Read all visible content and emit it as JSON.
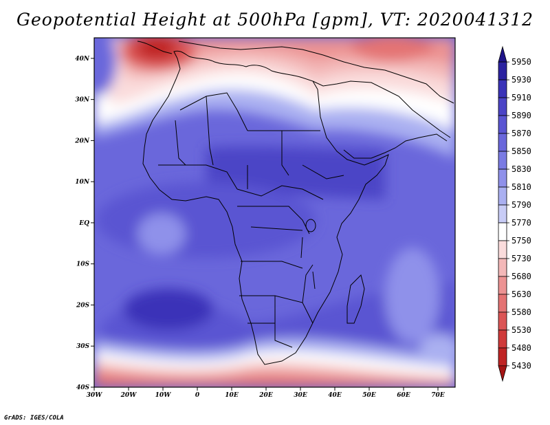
{
  "title": "Geopotential Height at 500hPa [gpm], VT: 2020041312",
  "credit": "GrADS: IGES/COLA",
  "map": {
    "variable": "Geopotential Height at 500hPa",
    "units": "gpm",
    "valid_time": "2020041312",
    "lon_range": [
      -30,
      75
    ],
    "lat_range": [
      -40,
      45
    ],
    "lon_ticks": [
      "30W",
      "20W",
      "10W",
      "0",
      "10E",
      "20E",
      "30E",
      "40E",
      "50E",
      "60E",
      "70E"
    ],
    "lat_ticks": [
      "40N",
      "30N",
      "20N",
      "10N",
      "EQ",
      "10S",
      "20S",
      "30S",
      "40S"
    ],
    "colorbar": {
      "labels": [
        "5950",
        "5930",
        "5910",
        "5890",
        "5870",
        "5850",
        "5830",
        "5810",
        "5790",
        "5770",
        "5750",
        "5730",
        "5680",
        "5630",
        "5580",
        "5530",
        "5480",
        "5430"
      ],
      "colors": [
        "#1f1489",
        "#2b22a0",
        "#3a33b8",
        "#4b44c6",
        "#5a55d2",
        "#6a67db",
        "#7a7be3",
        "#8f91ea",
        "#aab0f1",
        "#c8ccf6",
        "#ffffff",
        "#fadcdc",
        "#f3b8b8",
        "#ec9393",
        "#e47373",
        "#db5555",
        "#cf3a3a",
        "#bf2424",
        "#a51414"
      ]
    }
  }
}
